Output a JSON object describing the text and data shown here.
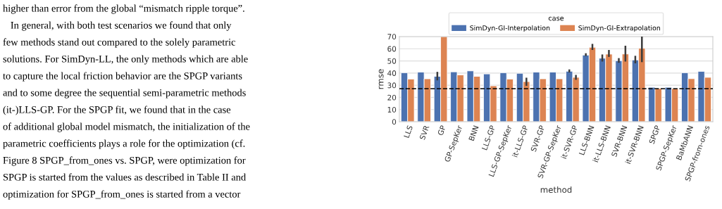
{
  "chart_data": {
    "type": "bar",
    "xlabel": "method",
    "ylabel": "rmse",
    "legend_title": "case",
    "categories": [
      "LLS",
      "SVR",
      "GP",
      "GP-SepKer",
      "BNN",
      "LLS-GP",
      "LLS-GP-SepKer",
      "it-LLS-GP",
      "SVR-GP",
      "SVR-GP-SepKer",
      "it-SVR-GP",
      "LLS-BNN",
      "it-LLS-BNN",
      "SVR-BNN",
      "it-SVR-BNN",
      "SPGP",
      "SPGP-SepKer",
      "BaMbANN",
      "SPGP-from-ones"
    ],
    "series": [
      {
        "name": "SimDyn-GI-Interpolation",
        "color": "#4c72b0",
        "values": [
          40.3,
          40.8,
          37.3,
          41,
          41.8,
          39.3,
          40.3,
          39.8,
          40.8,
          40.8,
          41.5,
          54.8,
          52.2,
          50.2,
          50.8,
          28.3,
          28.3,
          40.3,
          41.4
        ],
        "errors": [
          null,
          null,
          [
            34,
            41
          ],
          null,
          null,
          null,
          null,
          null,
          null,
          null,
          [
            40.5,
            43
          ],
          [
            54,
            56.3
          ],
          [
            49.5,
            55.3
          ],
          [
            48.5,
            52.3
          ],
          [
            48,
            54.2
          ],
          null,
          null,
          null,
          null
        ]
      },
      {
        "name": "SimDyn-GI-Extrapolation",
        "color": "#dd8452",
        "values": [
          35.1,
          35.3,
          70,
          38.5,
          37.3,
          29.5,
          35.1,
          33,
          35.3,
          35.3,
          36.5,
          61.2,
          55.6,
          55.7,
          60.4,
          27.3,
          27.2,
          35.4,
          36.5
        ],
        "errors": [
          null,
          null,
          null,
          null,
          null,
          null,
          null,
          [
            29.5,
            36.2
          ],
          null,
          null,
          [
            34.5,
            38.5
          ],
          [
            59,
            64
          ],
          [
            53.3,
            59
          ],
          [
            49.5,
            62.5
          ],
          [
            49,
            70
          ],
          null,
          null,
          null,
          null
        ]
      }
    ],
    "ylim": [
      0,
      70
    ],
    "yticks": [
      0,
      10,
      20,
      30,
      40,
      50,
      60,
      70
    ],
    "grid": "y",
    "legend": "top",
    "ref_lines": [
      {
        "axis": "y",
        "value": 27.2,
        "color": "#000000",
        "line_style": "dashed"
      }
    ],
    "annotations": [
      "higher than error from the global “mismatch ripple torque”.",
      "   In general, with both test scenarios we found that only",
      "few methods stand out compared to the solely parametric",
      "solutions. For SimDyn-LL, the only methods which are able",
      "to capture the local friction behavior are the SPGP variants",
      "and to some degree the sequential semi-parametric methods",
      "(it-)LLS-GP. For the SPGP fit, we found that in the case",
      "of additional global model mismatch, the initialization of the",
      "parametric coefficients plays a role for the optimization (cf.",
      "Figure 8 SPGP_from_ones vs. SPGP, were optimization for",
      "SPGP is started from the values as described in Table II and",
      "optimization for SPGP_from_ones is started from a vector"
    ]
  }
}
